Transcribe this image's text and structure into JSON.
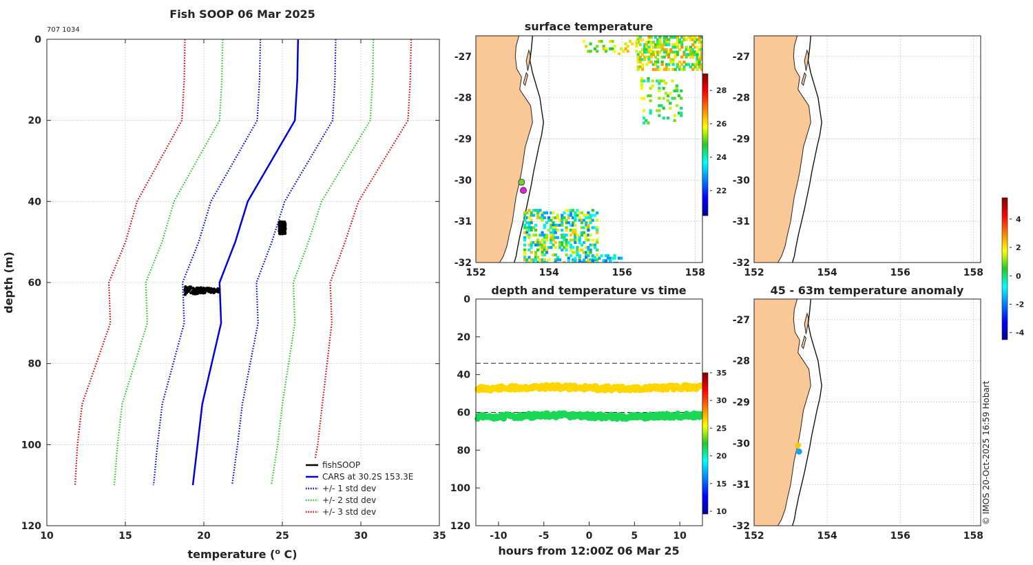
{
  "figure": {
    "title": "Fish SOOP 06 Mar 2025",
    "id_label": "707 1034",
    "credit": "© IMOS 20-Oct-2025 16:59 Hobart"
  },
  "chart_data": [
    {
      "id": "profile",
      "type": "line",
      "title": "Fish SOOP 06 Mar 2025",
      "xlabel": "temperature (",
      "xlabel_sup": "o",
      "xlabel_end": " C)",
      "ylabel": "depth (m)",
      "xlim": [
        10,
        35
      ],
      "ylim": [
        0,
        120
      ],
      "y_reversed": true,
      "xticks": [
        10,
        15,
        20,
        25,
        30,
        35
      ],
      "yticks": [
        0,
        20,
        40,
        60,
        80,
        100,
        120
      ],
      "grid": true,
      "depths": [
        0,
        10,
        20,
        40,
        50,
        60,
        70,
        90,
        100,
        110
      ],
      "cars_mean": [
        26.0,
        25.95,
        25.8,
        22.8,
        22.0,
        21.0,
        21.1,
        19.9,
        19.6,
        19.3
      ],
      "std": [
        2.4,
        2.4,
        2.4,
        2.35,
        2.33,
        2.35,
        2.35,
        2.55,
        2.55,
        2.5
      ],
      "series": [
        {
          "name": "fishSOOP",
          "color": "#000000",
          "style": "solid"
        },
        {
          "name": "CARS at 30.2S 153.3E",
          "color": "#0000dd",
          "style": "solid"
        },
        {
          "name": "+/- 1 std dev",
          "color": "#0000dd",
          "style": "dotted",
          "k": 1
        },
        {
          "name": "+/- 2 std dev",
          "color": "#22cc22",
          "style": "dotted",
          "k": 2
        },
        {
          "name": "+/- 3 std dev",
          "color": "#dd0000",
          "style": "dotted",
          "k": 3
        }
      ],
      "fishsoop_clusters": [
        {
          "temp_min": 24.8,
          "temp_max": 25.2,
          "depth_min": 45,
          "depth_max": 48
        },
        {
          "temp_min": 18.8,
          "temp_max": 21.0,
          "depth_min": 61,
          "depth_max": 63
        }
      ],
      "legend_position": "bottom-right"
    },
    {
      "id": "timeseries",
      "type": "scatter",
      "title": "depth and temperature vs time",
      "xlabel": "hours from 12:00Z 06 Mar 25",
      "xlim": [
        -12.5,
        12.5
      ],
      "ylim": [
        0,
        120
      ],
      "y_reversed": true,
      "xticks": [
        -10,
        -5,
        0,
        5,
        10
      ],
      "yticks": [
        0,
        20,
        40,
        60,
        80,
        100,
        120
      ],
      "dashed_depths": [
        34,
        60
      ],
      "bands": [
        {
          "depth": 47,
          "temperature": 26.5
        },
        {
          "depth": 62,
          "temperature": 21.5
        }
      ],
      "colorbar": {
        "min": 9.5,
        "max": 35,
        "ticks": [
          10,
          15,
          20,
          25,
          30,
          35
        ]
      }
    },
    {
      "id": "sst-map",
      "type": "heatmap",
      "title": "surface temperature",
      "xlim": [
        152,
        158.2
      ],
      "ylim": [
        -32,
        -26.5
      ],
      "xticks": [
        152,
        154,
        156,
        158
      ],
      "yticks": [
        -27,
        -28,
        -29,
        -30,
        -31,
        -32
      ],
      "colorbar": {
        "min": 20.5,
        "max": 29,
        "ticks": [
          22,
          24,
          26,
          28
        ]
      },
      "markers": [
        {
          "lon": 153.25,
          "lat": -30.05,
          "color": "#7ccd3a"
        },
        {
          "lon": 153.3,
          "lat": -30.25,
          "color": "#e020e0"
        }
      ]
    },
    {
      "id": "blank-map",
      "type": "heatmap",
      "title": "",
      "xlim": [
        152,
        158.2
      ],
      "ylim": [
        -32,
        -26.5
      ],
      "xticks": [
        152,
        154,
        156,
        158
      ],
      "yticks": [
        -27,
        -28,
        -29,
        -30,
        -31,
        -32
      ]
    },
    {
      "id": "anomaly-map",
      "type": "scatter",
      "title": "45 - 63m temperature anomaly",
      "xlim": [
        152,
        158.2
      ],
      "ylim": [
        -32,
        -26.5
      ],
      "xticks": [
        152,
        154,
        156,
        158
      ],
      "yticks": [
        -27,
        -28,
        -29,
        -30,
        -31,
        -32
      ],
      "points": [
        {
          "lon": 153.2,
          "lat": -30.05,
          "anomaly": 2.6,
          "color": "#f5c518"
        },
        {
          "lon": 153.23,
          "lat": -30.2,
          "anomaly": -1.5,
          "color": "#1aa3e8"
        }
      ],
      "colorbar": {
        "min": -4.5,
        "max": 5.5,
        "ticks": [
          -4,
          -2,
          0,
          2,
          4
        ]
      }
    }
  ]
}
